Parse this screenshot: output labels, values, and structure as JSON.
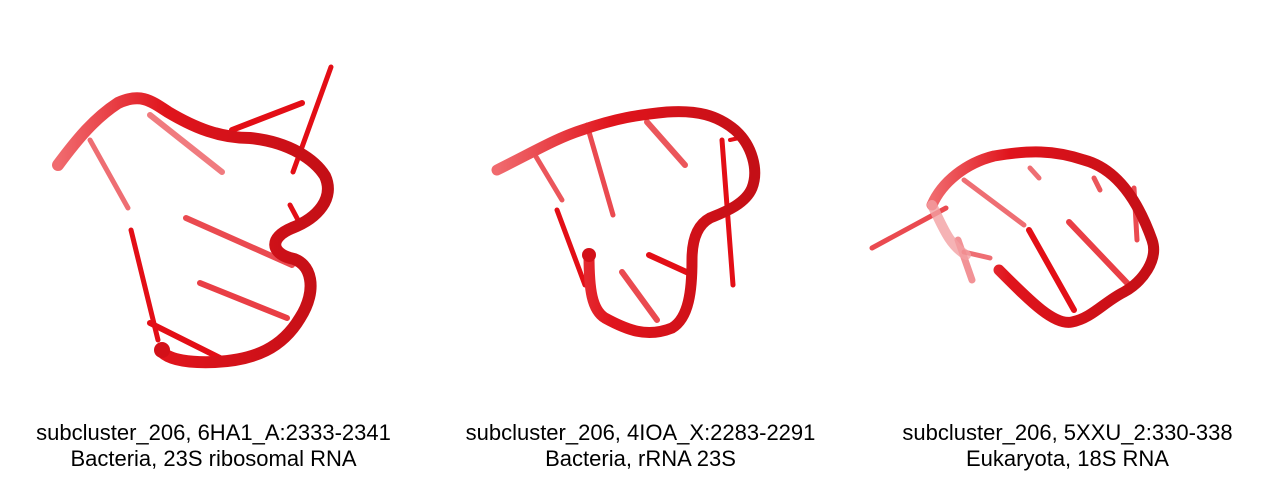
{
  "colors": {
    "backbone": "#e0141c",
    "backbone_dark": "#b00d12",
    "base": "#e30e16",
    "background": "#ffffff"
  },
  "panels": [
    {
      "title": "subcluster_206, 6HA1_A:2333-2341",
      "subtitle": "Bacteria, 23S ribosomal RNA"
    },
    {
      "title": "subcluster_206, 4IOA_X:2283-2291",
      "subtitle": "Bacteria, rRNA 23S"
    },
    {
      "title": "subcluster_206, 5XXU_2:330-338",
      "subtitle": "Eukaryota, 18S RNA"
    }
  ]
}
